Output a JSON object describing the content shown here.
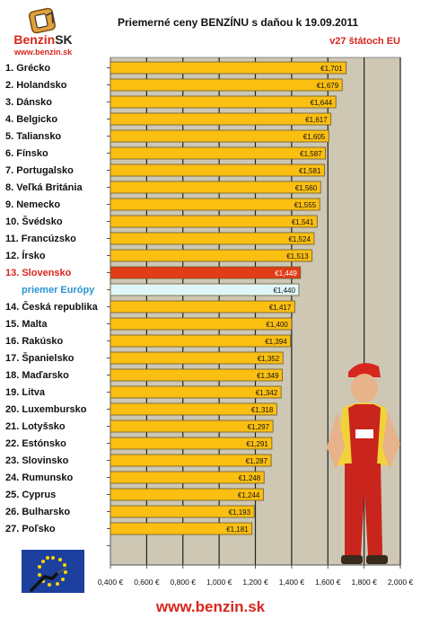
{
  "header": {
    "logo_brand": "Benzin",
    "logo_brand_suffix": "SK",
    "logo_url": "www.benzin.sk",
    "title": "Priemerné ceny BENZÍNU s daňou k 19.09.2011",
    "subtitle": "v27 štátoch EU"
  },
  "footer": {
    "url": "www.benzin.sk"
  },
  "colors": {
    "bar": "#fbbf12",
    "highlight_bar": "#e23c16",
    "average_bar": "#dff7f9",
    "highlight_label": "#d7261e",
    "average_label": "#2a93d5",
    "plot_background": "#cdc7b4"
  },
  "chart_data": {
    "type": "bar",
    "orientation": "horizontal",
    "title": "Priemerné ceny BENZÍNU s daňou k 19.09.2011",
    "subtitle": "v27 štátoch EU",
    "xlim": [
      0.4,
      2.0
    ],
    "x_ticks": [
      "0,400 €",
      "0,600 €",
      "0,800 €",
      "1,000 €",
      "1,200 €",
      "1,400 €",
      "1,600 €",
      "1,800 €",
      "2,000 €"
    ],
    "x_tick_values": [
      0.4,
      0.6,
      0.8,
      1.0,
      1.2,
      1.4,
      1.6,
      1.8,
      2.0
    ],
    "grid": "vertical",
    "categories": [
      "1. Grécko",
      "2. Holandsko",
      "3. Dánsko",
      "4. Belgicko",
      "5. Taliansko",
      "6. Fínsko",
      "7. Portugalsko",
      "8. Veľká Británia",
      "9. Nemecko",
      "10. Švédsko",
      "11. Francúzsko",
      "12. Írsko",
      "13. Slovensko",
      "priemer Európy",
      "14. Česká republika",
      "15. Malta",
      "16. Rakúsko",
      "17. Španielsko",
      "18. Maďarsko",
      "19. Litva",
      "20. Luxembursko",
      "21. Lotyšsko",
      "22. Estónsko",
      "23. Slovinsko",
      "24. Rumunsko",
      "25. Cyprus",
      "26. Bulharsko",
      "27. Poľsko"
    ],
    "values": [
      1.701,
      1.679,
      1.644,
      1.617,
      1.605,
      1.587,
      1.581,
      1.56,
      1.555,
      1.541,
      1.524,
      1.513,
      1.449,
      1.44,
      1.417,
      1.4,
      1.394,
      1.352,
      1.349,
      1.342,
      1.318,
      1.297,
      1.291,
      1.287,
      1.248,
      1.244,
      1.193,
      1.181
    ],
    "value_labels": [
      "€1,701",
      "€1,679",
      "€1,644",
      "€1,617",
      "€1,605",
      "€1,587",
      "€1,581",
      "€1,560",
      "€1,555",
      "€1,541",
      "€1,524",
      "€1,513",
      "€1,449",
      "€1,440",
      "€1,417",
      "€1,400",
      "€1,394",
      "€1,352",
      "€1,349",
      "€1,342",
      "€1,318",
      "€1,297",
      "€1,291",
      "€1,287",
      "€1,248",
      "€1,244",
      "€1,193",
      "€1,181"
    ],
    "highlight_index": 12,
    "average_index": 13
  }
}
